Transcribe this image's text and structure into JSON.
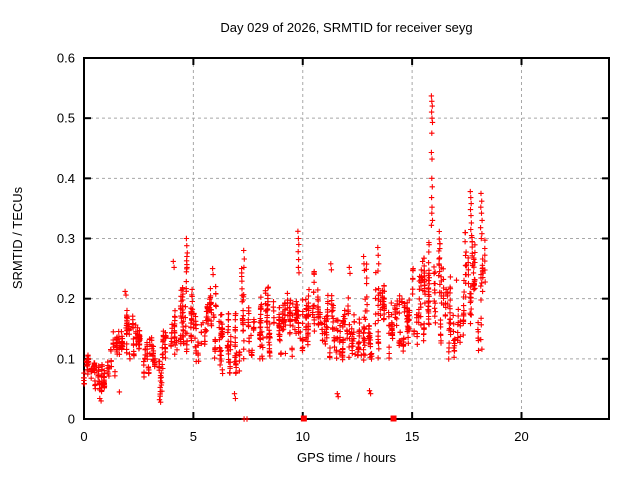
{
  "colors": {
    "marker": "#ff0000",
    "grid": "#a8a8a8",
    "frame": "#000000",
    "background": "#ffffff",
    "text": "#000000"
  },
  "chart_data": {
    "type": "scatter",
    "title": "Day 029 of 2026, SRMTID for receiver seyg",
    "xlabel": "GPS time / hours",
    "ylabel": "SRMTID / TECUs",
    "xlim": [
      0,
      24
    ],
    "ylim": [
      0,
      0.6
    ],
    "xticks": [
      0,
      5,
      10,
      15,
      20
    ],
    "xtick_labels": [
      "0",
      "5",
      "10",
      "15",
      "20"
    ],
    "yticks": [
      0,
      0.1,
      0.2,
      0.3,
      0.4,
      0.5,
      0.6
    ],
    "ytick_labels": [
      "0",
      "0.1",
      "0.2",
      "0.3",
      "0.4",
      "0.5",
      "0.6"
    ],
    "grid": true,
    "legend_position": "none",
    "marker": "plus",
    "marker_size": 5.4,
    "x_data_range": [
      0,
      18.35
    ],
    "band_bins_format": "[t_start, t_end, y_min, y_max, n_points]",
    "series": [
      {
        "name": "SRMTID",
        "color": "#ff0000",
        "band_bins": [
          [
            0.0,
            0.3,
            0.055,
            0.115,
            26
          ],
          [
            0.3,
            0.6,
            0.04,
            0.105,
            26
          ],
          [
            0.6,
            0.9,
            0.03,
            0.095,
            26
          ],
          [
            0.9,
            1.2,
            0.05,
            0.12,
            24
          ],
          [
            1.2,
            1.5,
            0.07,
            0.145,
            24
          ],
          [
            1.5,
            1.8,
            0.1,
            0.185,
            26
          ],
          [
            1.8,
            2.1,
            0.11,
            0.205,
            28
          ],
          [
            2.1,
            2.4,
            0.1,
            0.175,
            24
          ],
          [
            2.4,
            2.7,
            0.085,
            0.155,
            24
          ],
          [
            2.7,
            3.0,
            0.07,
            0.14,
            24
          ],
          [
            3.0,
            3.3,
            0.06,
            0.135,
            24
          ],
          [
            3.3,
            3.6,
            0.035,
            0.12,
            22
          ],
          [
            3.6,
            3.9,
            0.08,
            0.165,
            24
          ],
          [
            3.9,
            4.2,
            0.09,
            0.21,
            26
          ],
          [
            4.2,
            4.5,
            0.1,
            0.225,
            26
          ],
          [
            4.5,
            4.8,
            0.1,
            0.27,
            26
          ],
          [
            4.8,
            5.1,
            0.1,
            0.235,
            26
          ],
          [
            5.1,
            5.4,
            0.09,
            0.18,
            24
          ],
          [
            5.4,
            5.7,
            0.1,
            0.19,
            24
          ],
          [
            5.7,
            6.0,
            0.1,
            0.235,
            26
          ],
          [
            6.0,
            6.3,
            0.09,
            0.22,
            24
          ],
          [
            6.3,
            6.6,
            0.07,
            0.175,
            24
          ],
          [
            6.6,
            6.9,
            0.05,
            0.15,
            22
          ],
          [
            6.9,
            7.2,
            0.04,
            0.175,
            22
          ],
          [
            7.2,
            7.5,
            0.08,
            0.25,
            24
          ],
          [
            7.5,
            7.8,
            0.1,
            0.21,
            24
          ],
          [
            7.8,
            8.1,
            0.1,
            0.22,
            26
          ],
          [
            8.1,
            8.4,
            0.1,
            0.23,
            26
          ],
          [
            8.4,
            8.7,
            0.09,
            0.2,
            24
          ],
          [
            8.7,
            9.0,
            0.08,
            0.185,
            24
          ],
          [
            9.0,
            9.3,
            0.09,
            0.2,
            24
          ],
          [
            9.3,
            9.6,
            0.1,
            0.22,
            26
          ],
          [
            9.6,
            9.9,
            0.1,
            0.27,
            26
          ],
          [
            9.9,
            10.2,
            0.09,
            0.23,
            24
          ],
          [
            10.2,
            10.5,
            0.1,
            0.215,
            24
          ],
          [
            10.5,
            10.8,
            0.11,
            0.245,
            26
          ],
          [
            10.8,
            11.1,
            0.1,
            0.21,
            24
          ],
          [
            11.1,
            11.4,
            0.09,
            0.26,
            24
          ],
          [
            11.4,
            11.7,
            0.065,
            0.18,
            22
          ],
          [
            11.7,
            12.0,
            0.08,
            0.19,
            24
          ],
          [
            12.0,
            12.3,
            0.1,
            0.235,
            26
          ],
          [
            12.3,
            12.6,
            0.1,
            0.22,
            24
          ],
          [
            12.6,
            13.0,
            0.08,
            0.27,
            26
          ],
          [
            13.0,
            13.3,
            0.05,
            0.17,
            22
          ],
          [
            13.3,
            13.6,
            0.07,
            0.285,
            24
          ],
          [
            13.6,
            13.9,
            0.1,
            0.23,
            24
          ],
          [
            13.9,
            14.2,
            0.1,
            0.2,
            24
          ],
          [
            14.2,
            14.5,
            0.1,
            0.215,
            24
          ],
          [
            14.5,
            14.8,
            0.11,
            0.23,
            26
          ],
          [
            14.8,
            15.1,
            0.12,
            0.25,
            26
          ],
          [
            15.1,
            15.4,
            0.12,
            0.265,
            26
          ],
          [
            15.4,
            15.7,
            0.13,
            0.3,
            26
          ],
          [
            15.7,
            16.0,
            0.12,
            0.315,
            28
          ],
          [
            16.0,
            16.3,
            0.13,
            0.33,
            28
          ],
          [
            16.3,
            16.6,
            0.12,
            0.3,
            26
          ],
          [
            16.6,
            16.9,
            0.095,
            0.27,
            24
          ],
          [
            16.9,
            17.2,
            0.1,
            0.28,
            24
          ],
          [
            17.2,
            17.5,
            0.11,
            0.31,
            26
          ],
          [
            17.5,
            17.8,
            0.12,
            0.33,
            26
          ],
          [
            17.8,
            18.1,
            0.11,
            0.3,
            24
          ],
          [
            18.1,
            18.35,
            0.1,
            0.31,
            18
          ]
        ],
        "points": [
          [
            15.88,
            0.537
          ],
          [
            15.9,
            0.528
          ],
          [
            15.92,
            0.52
          ],
          [
            15.89,
            0.51
          ],
          [
            15.91,
            0.5
          ],
          [
            15.93,
            0.493
          ],
          [
            15.9,
            0.475
          ],
          [
            15.88,
            0.443
          ],
          [
            15.91,
            0.432
          ],
          [
            15.9,
            0.4
          ],
          [
            15.92,
            0.386
          ],
          [
            15.89,
            0.368
          ],
          [
            15.91,
            0.352
          ],
          [
            15.9,
            0.342
          ],
          [
            15.93,
            0.33
          ],
          [
            15.88,
            0.322
          ],
          [
            4.68,
            0.3
          ],
          [
            4.7,
            0.288
          ],
          [
            4.72,
            0.276
          ],
          [
            4.69,
            0.263
          ],
          [
            4.71,
            0.252
          ],
          [
            7.3,
            0.28
          ],
          [
            7.33,
            0.266
          ],
          [
            7.31,
            0.252
          ],
          [
            9.78,
            0.312
          ],
          [
            9.8,
            0.3
          ],
          [
            9.82,
            0.29
          ],
          [
            9.79,
            0.278
          ],
          [
            9.81,
            0.265
          ],
          [
            9.8,
            0.252
          ],
          [
            9.83,
            0.243
          ],
          [
            12.78,
            0.27
          ],
          [
            12.8,
            0.258
          ],
          [
            12.82,
            0.247
          ],
          [
            13.43,
            0.285
          ],
          [
            13.45,
            0.272
          ],
          [
            13.47,
            0.258
          ],
          [
            13.44,
            0.246
          ],
          [
            5.88,
            0.25
          ],
          [
            5.9,
            0.24
          ],
          [
            12.13,
            0.252
          ],
          [
            12.16,
            0.242
          ],
          [
            11.28,
            0.258
          ],
          [
            11.31,
            0.248
          ],
          [
            17.66,
            0.378
          ],
          [
            17.68,
            0.368
          ],
          [
            17.7,
            0.358
          ],
          [
            17.67,
            0.348
          ],
          [
            17.69,
            0.338
          ],
          [
            17.71,
            0.326
          ],
          [
            17.68,
            0.315
          ],
          [
            17.72,
            0.305
          ],
          [
            18.15,
            0.375
          ],
          [
            18.18,
            0.362
          ],
          [
            18.14,
            0.352
          ],
          [
            18.17,
            0.342
          ],
          [
            18.2,
            0.33
          ],
          [
            18.13,
            0.318
          ],
          [
            18.19,
            0.308
          ],
          [
            18.16,
            0.3
          ],
          [
            18.21,
            0.25
          ],
          [
            18.15,
            0.24
          ],
          [
            18.18,
            0.226
          ],
          [
            18.22,
            0.212
          ],
          [
            18.14,
            0.132
          ],
          [
            18.19,
            0.116
          ],
          [
            0.72,
            0.034
          ],
          [
            0.78,
            0.03
          ],
          [
            3.45,
            0.032
          ],
          [
            3.5,
            0.028
          ],
          [
            6.92,
            0.034
          ],
          [
            6.88,
            0.042
          ],
          [
            11.58,
            0.042
          ],
          [
            11.62,
            0.037
          ],
          [
            13.05,
            0.047
          ],
          [
            13.1,
            0.042
          ],
          [
            1.62,
            0.045
          ],
          [
            1.88,
            0.212
          ],
          [
            1.92,
            0.206
          ],
          [
            4.08,
            0.262
          ],
          [
            4.12,
            0.252
          ]
        ],
        "axis_markers_plus": [
          7.32,
          7.45
        ],
        "axis_markers_square": [
          10.05,
          14.15
        ]
      }
    ]
  }
}
